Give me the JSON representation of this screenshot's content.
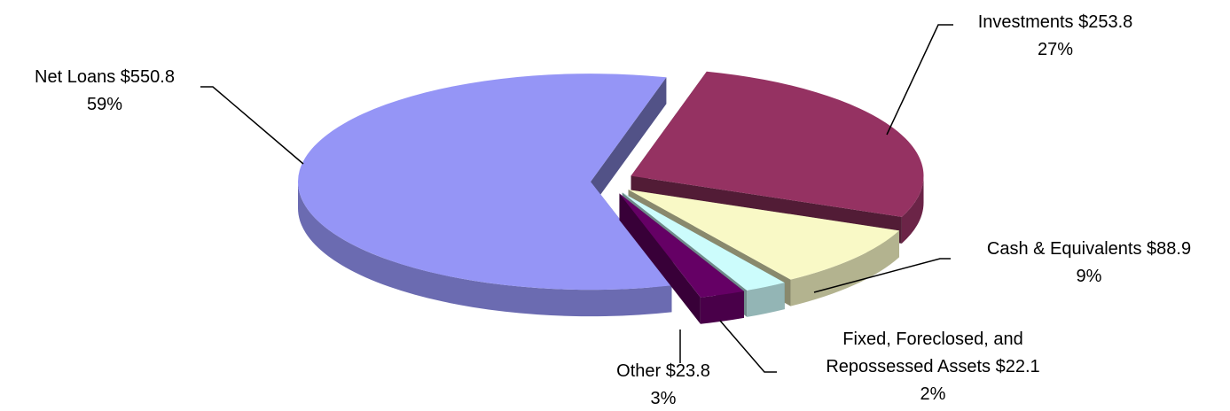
{
  "chart_data": {
    "type": "pie3d",
    "categories": [
      "Investments",
      "Cash & Equivalents",
      "Fixed, Foreclosed, and Repossessed Assets",
      "Other",
      "Net Loans"
    ],
    "values": [
      253.8,
      88.9,
      22.1,
      23.8,
      550.8
    ],
    "value_labels": [
      "$253.8",
      "$88.9",
      "$22.1",
      "$23.8",
      "$550.8"
    ],
    "percentages": [
      27,
      9,
      2,
      3,
      59
    ],
    "percentage_labels": [
      "27%",
      "9%",
      "2%",
      "3%",
      "59%"
    ],
    "colors": [
      "#953262",
      "#f9f9c6",
      "#ccfcfc",
      "#650065",
      "#9595f6"
    ]
  }
}
